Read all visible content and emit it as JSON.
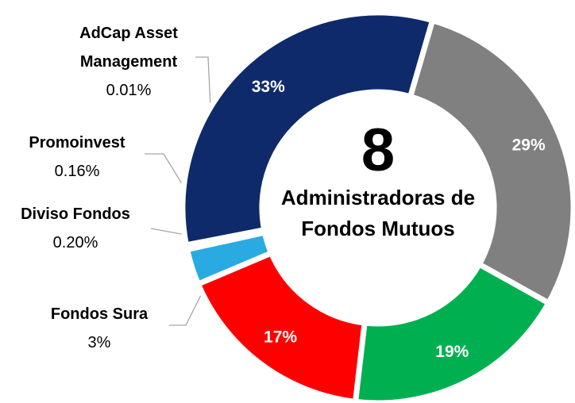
{
  "chart_data": {
    "type": "donut",
    "categories": [
      null,
      null,
      null,
      null,
      "Fondos Sura",
      "Diviso Fondos",
      "Promoinvest",
      "AdCap Asset Management"
    ],
    "values": [
      33,
      29,
      19,
      17,
      3,
      0.2,
      0.16,
      0.01
    ],
    "value_labels": [
      "33%",
      "29%",
      "19%",
      "17%",
      "3%",
      "0.20%",
      "0.16%",
      "0.01%"
    ],
    "colors": [
      "#0e2a6b",
      "#808080",
      "#00b050",
      "#ff0000",
      "#29abe2",
      "#29abe2",
      "#29abe2",
      "#0e2a6b"
    ]
  },
  "center": {
    "number": "8",
    "text": "Administradoras de Fondos Mutuos"
  }
}
